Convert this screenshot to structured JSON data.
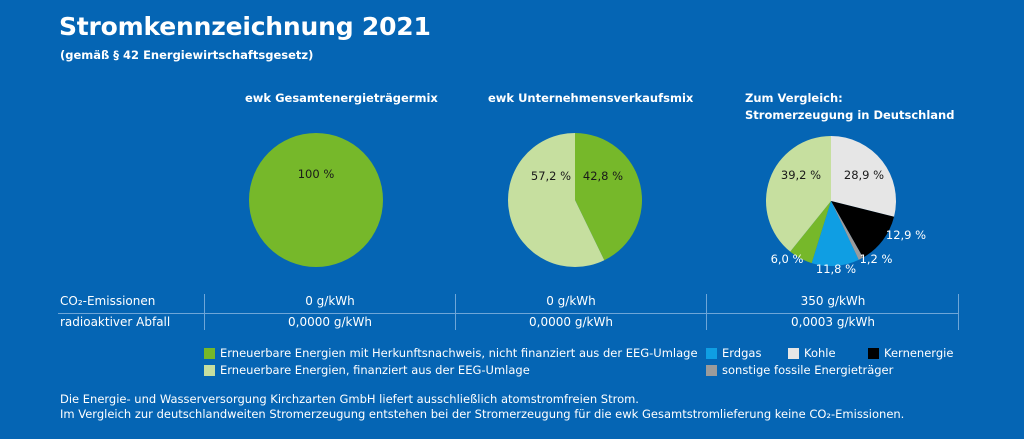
{
  "header": {
    "title": "Stromkennzeichnung 2021",
    "subtitle": "(gemäß § 42 Energiewirtschaftsgesetz)"
  },
  "colors": {
    "renewable_hkn": "#76b82a",
    "renewable_eeg": "#c6df9f",
    "erdgas": "#0f9ee3",
    "kohle": "#e6e6e6",
    "kernenergie": "#000000",
    "fossil": "#9b9b9b"
  },
  "chart_data": [
    {
      "type": "pie",
      "title": "ewk Gesamtenergieträgermix",
      "slices": [
        {
          "category": "renewable_hkn",
          "value": 100,
          "label": "100 %"
        }
      ]
    },
    {
      "type": "pie",
      "title": "ewk Unternehmensverkaufsmix",
      "slices": [
        {
          "category": "renewable_hkn",
          "value": 42.8,
          "label": "42,8 %"
        },
        {
          "category": "renewable_eeg",
          "value": 57.2,
          "label": "57,2 %"
        }
      ]
    },
    {
      "type": "pie",
      "title": "Zum Vergleich:",
      "title_line2": "Stromerzeugung in Deutschland",
      "slices": [
        {
          "category": "kohle",
          "value": 28.9,
          "label": "28,9 %"
        },
        {
          "category": "kernenergie",
          "value": 12.9,
          "label": "12,9 %"
        },
        {
          "category": "fossil",
          "value": 1.2,
          "label": "1,2 %"
        },
        {
          "category": "erdgas",
          "value": 11.8,
          "label": "11,8 %"
        },
        {
          "category": "renewable_hkn",
          "value": 6.0,
          "label": "6,0 %"
        },
        {
          "category": "renewable_eeg",
          "value": 39.2,
          "label": "39,2 %"
        }
      ]
    }
  ],
  "table": {
    "rows": [
      {
        "label": "CO₂-Emissionen",
        "values": [
          "0 g/kWh",
          "0 g/kWh",
          "350 g/kWh"
        ]
      },
      {
        "label": "radioaktiver Abfall",
        "values": [
          "0,0000 g/kWh",
          "0,0000 g/kWh",
          "0,0003 g/kWh"
        ]
      }
    ]
  },
  "legend": {
    "renewable_hkn": "Erneuerbare Energien mit Herkunftsnachweis, nicht finanziert aus der EEG-Umlage",
    "renewable_eeg": "Erneuerbare Energien, finanziert aus der EEG-Umlage",
    "erdgas": "Erdgas",
    "kohle": "Kohle",
    "kernenergie": "Kernenergie",
    "fossil": "sonstige fossile Energieträger"
  },
  "footer": {
    "line1": "Die Energie- und Wasserversorgung Kirchzarten GmbH liefert ausschließlich atomstromfreien Strom.",
    "line2": "Im Vergleich zur deutschlandweiten Stromerzeugung entstehen bei der Stromerzeugung für die ewk Gesamtstromlieferung keine CO₂-Emissionen."
  }
}
